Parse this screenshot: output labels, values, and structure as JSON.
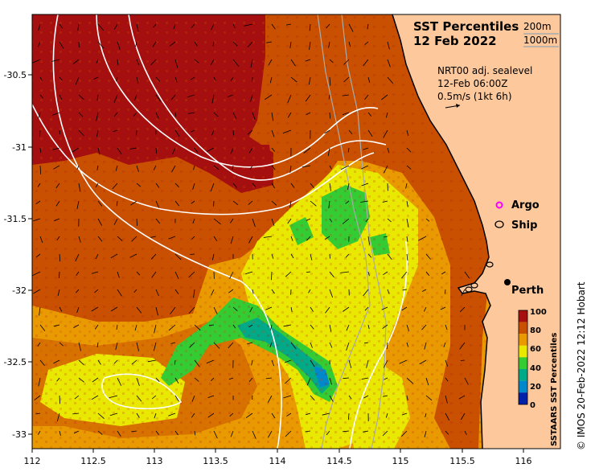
{
  "title": {
    "line1": "SST Percentiles",
    "line2": "12 Feb 2022"
  },
  "depth_legend": {
    "contour1": "200m",
    "contour2": "1000m"
  },
  "current_info": {
    "line1": "NRT00 adj. sealevel",
    "line2": "12-Feb 06:00Z",
    "line3": "0.5m/s (1kt 6h)"
  },
  "markers": {
    "argo": "Argo",
    "ship": "Ship",
    "city": "Perth"
  },
  "colorbar": {
    "label": "SSTAARS SST Percentiles",
    "ticks": [
      "100",
      "80",
      "60",
      "40",
      "20",
      "0"
    ],
    "colors": [
      "#a50f0f",
      "#c85000",
      "#e89a00",
      "#e8e800",
      "#33cc33",
      "#00aa88",
      "#0088cc",
      "#0022aa"
    ]
  },
  "credit": "© IMOS 20-Feb-2022 12:12 Hobart",
  "axes": {
    "x_ticks": [
      "112",
      "112.5",
      "113",
      "113.5",
      "114",
      "114.5",
      "115",
      "115.5",
      "116"
    ],
    "y_ticks": [
      "-30.5",
      "-31",
      "-31.5",
      "-32",
      "-32.5",
      "-33"
    ]
  },
  "colors": {
    "land": "#fcc89c",
    "p90_100": "#a50f0f",
    "p80_90": "#c85000",
    "p70_80": "#e89a00",
    "p60_70": "#e8e800",
    "p50_60": "#33cc33",
    "p40_50": "#00aa88",
    "contour_sealevel": "#ffffff",
    "contour_bathy": "#aaaaaa"
  }
}
